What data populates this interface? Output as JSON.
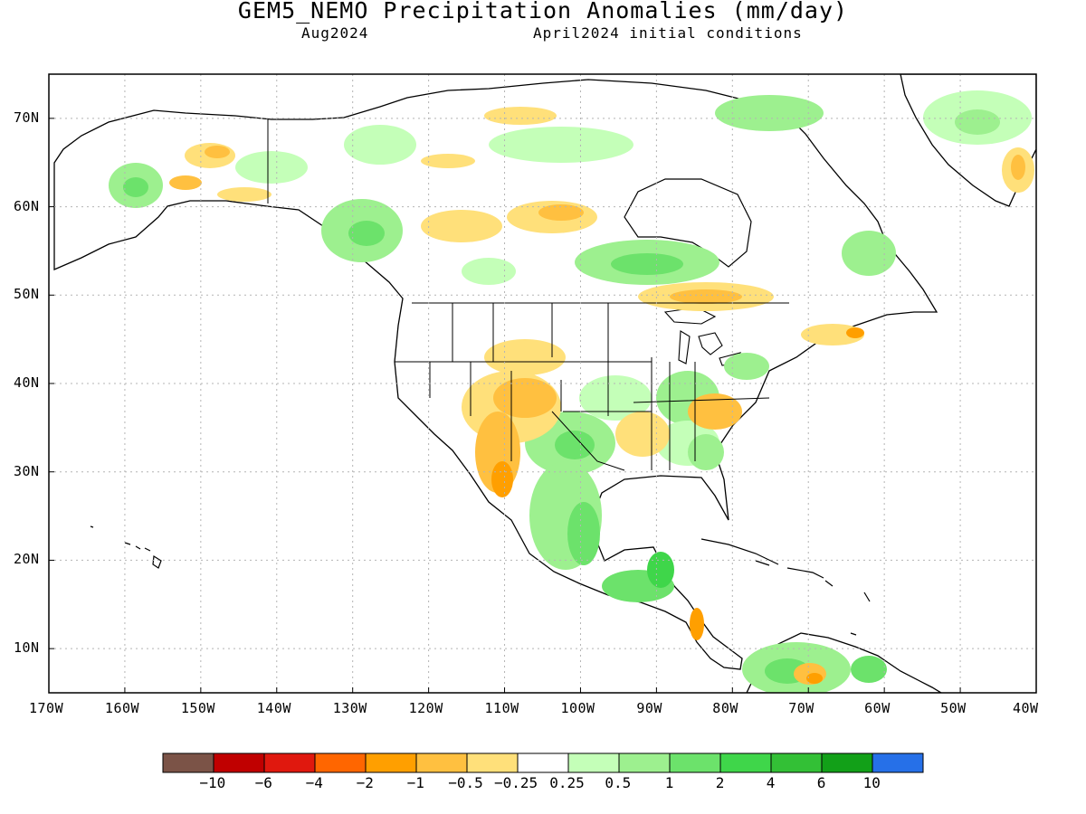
{
  "title": "GEM5_NEMO Precipitation Anomalies (mm/day)",
  "valid_month": "Aug2024",
  "initial_conditions": "April2024 initial conditions",
  "map": {
    "lon_labels": [
      "170W",
      "160W",
      "150W",
      "140W",
      "130W",
      "120W",
      "110W",
      "100W",
      "90W",
      "80W",
      "70W",
      "60W",
      "50W",
      "40W"
    ],
    "lat_labels": [
      "70N",
      "60N",
      "50N",
      "40N",
      "30N",
      "20N",
      "10N"
    ],
    "lon_range": [
      -170,
      -40
    ],
    "lat_range": [
      5,
      75
    ],
    "grid": true
  },
  "colorbar": {
    "labels": [
      "-10",
      "-6",
      "-4",
      "-2",
      "-1",
      "-0.5",
      "-0.25",
      "0.25",
      "0.5",
      "1",
      "2",
      "4",
      "6",
      "10"
    ],
    "colors": [
      "#7b5347",
      "#c00000",
      "#e0180e",
      "#ff6600",
      "#ff9f00",
      "#ffc040",
      "#ffe07a",
      "#ffffff",
      "#c4ffb8",
      "#9df08f",
      "#6ce26b",
      "#3fd64a",
      "#33c036",
      "#12a018",
      "#2670e8"
    ]
  },
  "colors": {
    "land_outline": "#000000",
    "grid_line": "#b4b4b4"
  }
}
